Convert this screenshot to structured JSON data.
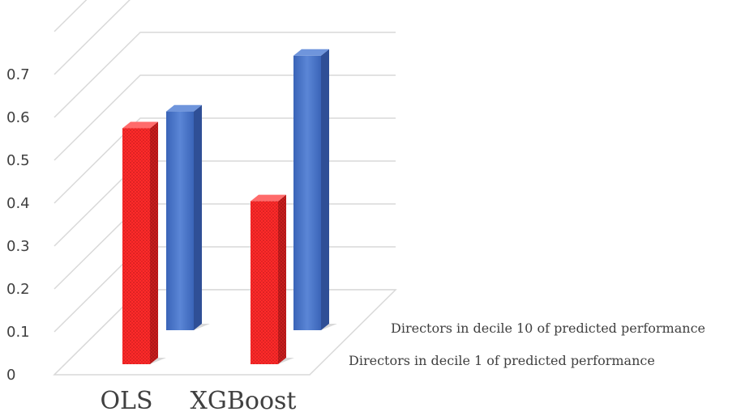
{
  "chart_data": {
    "type": "bar",
    "title": "",
    "xlabel": "",
    "ylabel": "",
    "ylim": [
      0,
      0.8
    ],
    "yticks": [
      "0",
      "0.1",
      "0.2",
      "0.3",
      "0.4",
      "0.5",
      "0.6",
      "0.7"
    ],
    "categories": [
      "OLS",
      "XGBoost"
    ],
    "series": [
      {
        "name": "Directors in decile 1 of predicted performance",
        "values": [
          0.55,
          0.38
        ],
        "color": "#ff3333"
      },
      {
        "name": "Directors in decile 10 of predicted performance",
        "values": [
          0.51,
          0.64
        ],
        "color": "#4472c4"
      }
    ],
    "grid": true,
    "style": "3d-column"
  }
}
